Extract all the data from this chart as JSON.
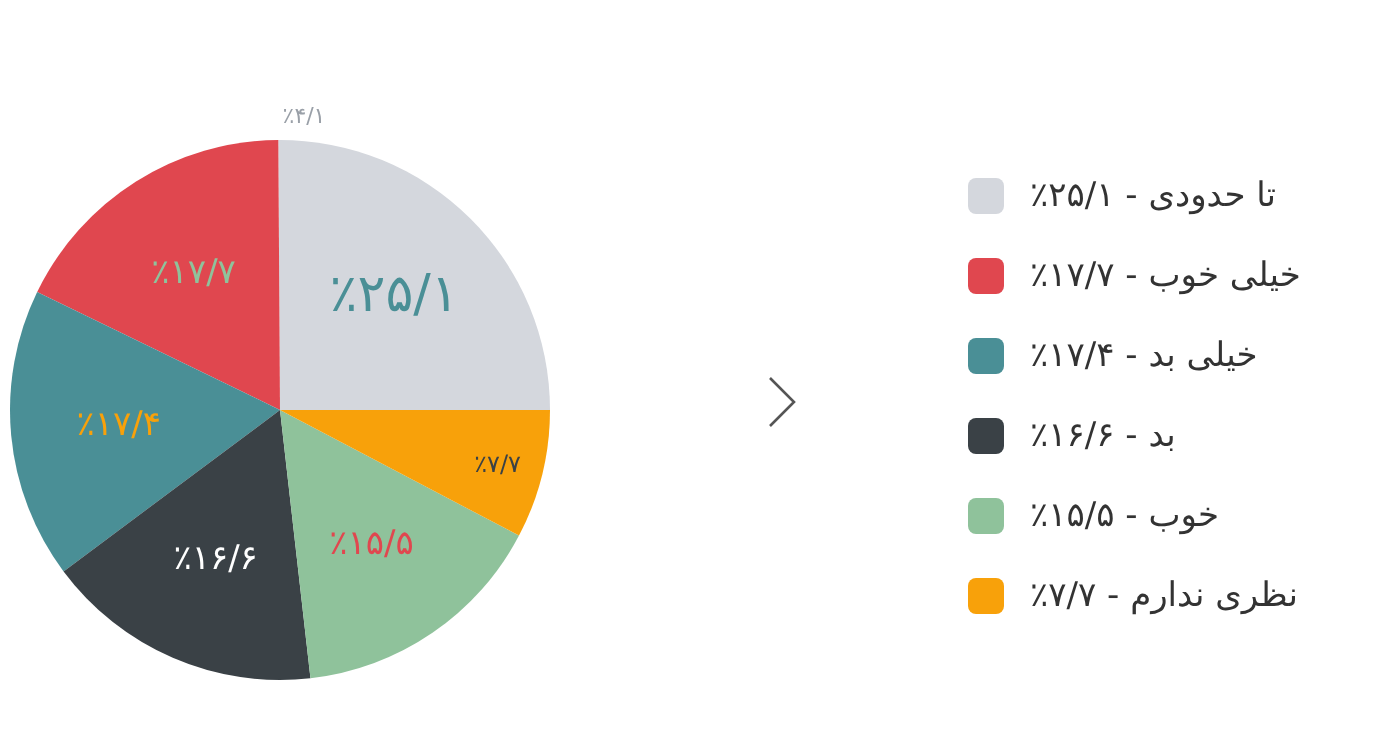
{
  "chart_data": {
    "type": "pie",
    "categories": [
      "تا حدودی",
      "خیلی خوب",
      "خیلی بد",
      "بد",
      "خوب",
      "نظری ندارم"
    ],
    "values": [
      25.1,
      17.7,
      17.4,
      16.6,
      15.5,
      7.7
    ],
    "value_labels": [
      "٪۲۵/۱",
      "٪۱۷/۷",
      "٪۱۷/۴",
      "٪۱۶/۶",
      "٪۱۵/۵",
      "٪۷/۷"
    ],
    "colors": [
      "#d4d7dd",
      "#e0474f",
      "#4a8f96",
      "#3a4146",
      "#8fc29b",
      "#f8a10a"
    ],
    "annotations": [
      "٪۴/۱"
    ],
    "legend": "right"
  }
}
